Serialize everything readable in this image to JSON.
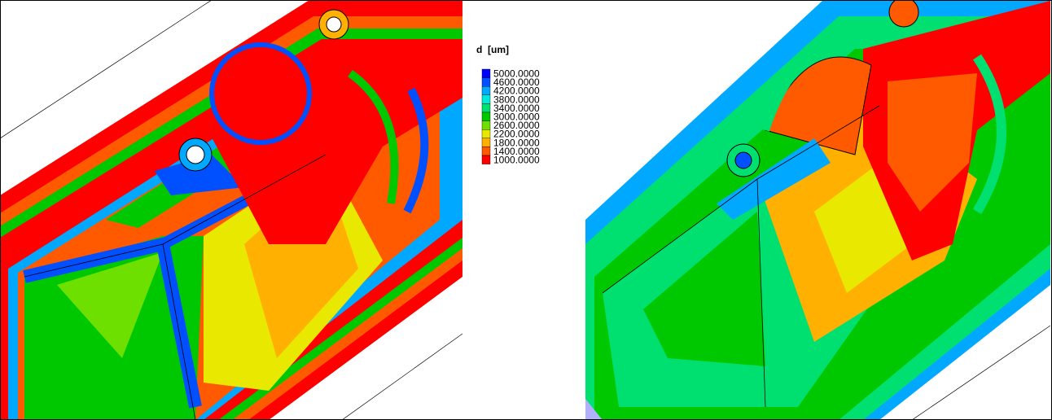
{
  "legend": {
    "title": "d  [um]",
    "entries": [
      {
        "label": "5000.0000",
        "color": "#0000ff"
      },
      {
        "label": "4600.0000",
        "color": "#0050ff"
      },
      {
        "label": "4200.0000",
        "color": "#00a8ff"
      },
      {
        "label": "3800.0000",
        "color": "#00e8d8"
      },
      {
        "label": "3400.0000",
        "color": "#00e070"
      },
      {
        "label": "3000.0000",
        "color": "#00c800"
      },
      {
        "label": "2600.0000",
        "color": "#6ee000"
      },
      {
        "label": "2200.0000",
        "color": "#e8e800"
      },
      {
        "label": "1800.0000",
        "color": "#ffb000"
      },
      {
        "label": "1400.0000",
        "color": "#ff5a00"
      },
      {
        "label": "1000.0000",
        "color": "#ff0000"
      }
    ]
  }
}
